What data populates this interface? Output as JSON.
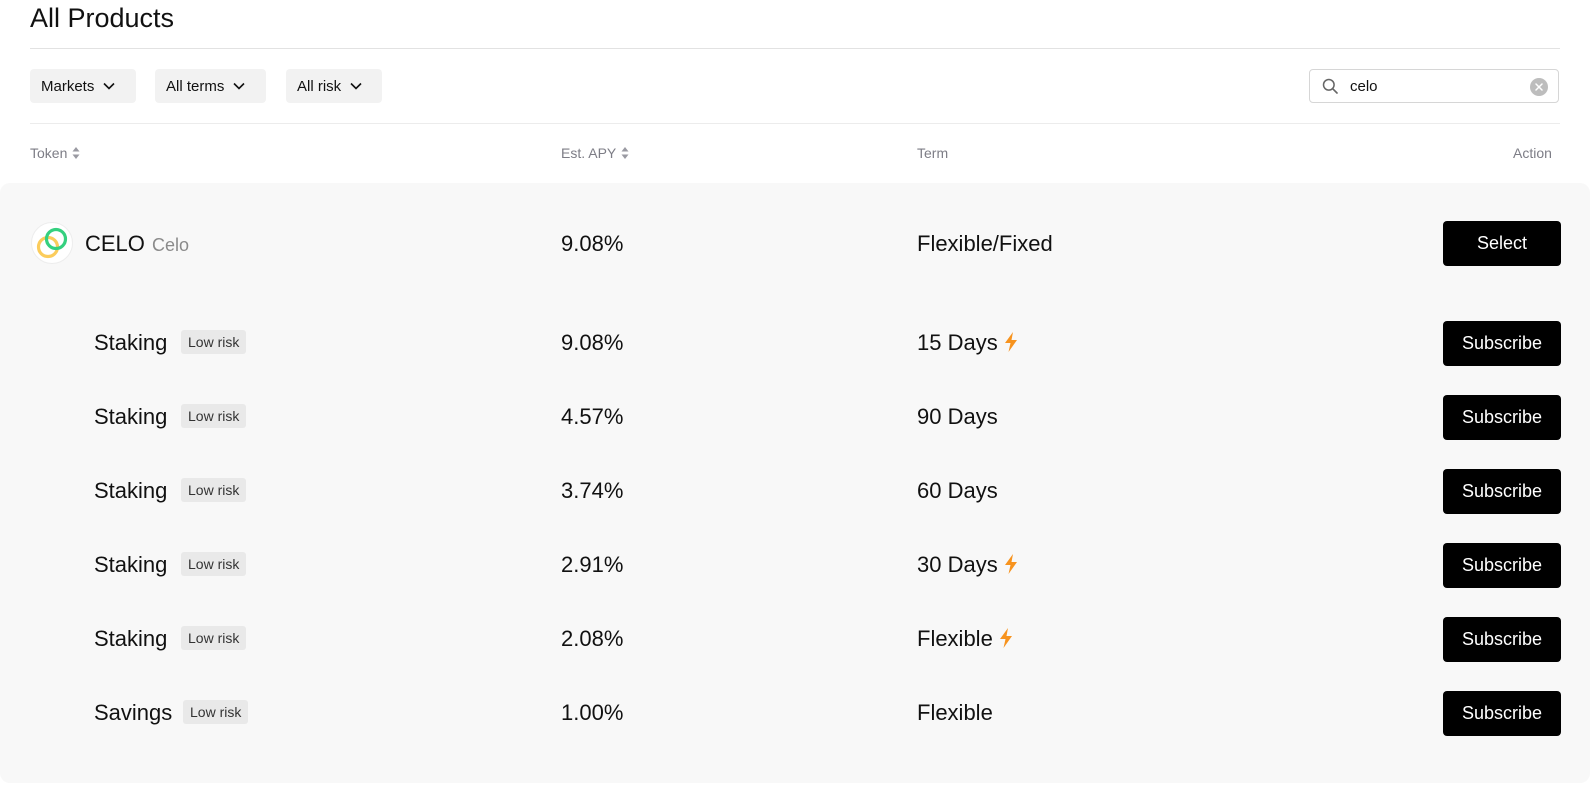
{
  "page": {
    "title": "All Products"
  },
  "filters": {
    "markets": "Markets",
    "terms": "All terms",
    "risk": "All risk"
  },
  "search": {
    "value": "celo"
  },
  "table": {
    "headers": {
      "token": "Token",
      "apy": "Est. APY",
      "term": "Term",
      "action": "Action"
    },
    "token": {
      "symbol": "CELO",
      "name": "Celo",
      "apy": "9.08%",
      "term": "Flexible/Fixed",
      "action": "Select",
      "logo_colors": [
        "#35D07F",
        "#FBCC5C"
      ]
    },
    "products": [
      {
        "name": "Staking",
        "risk": "Low risk",
        "apy": "9.08%",
        "term": "15 Days",
        "boost": true,
        "action": "Subscribe"
      },
      {
        "name": "Staking",
        "risk": "Low risk",
        "apy": "4.57%",
        "term": "90 Days",
        "boost": false,
        "action": "Subscribe"
      },
      {
        "name": "Staking",
        "risk": "Low risk",
        "apy": "3.74%",
        "term": "60 Days",
        "boost": false,
        "action": "Subscribe"
      },
      {
        "name": "Staking",
        "risk": "Low risk",
        "apy": "2.91%",
        "term": "30 Days",
        "boost": true,
        "action": "Subscribe"
      },
      {
        "name": "Staking",
        "risk": "Low risk",
        "apy": "2.08%",
        "term": "Flexible",
        "boost": true,
        "action": "Subscribe"
      },
      {
        "name": "Savings",
        "risk": "Low risk",
        "apy": "1.00%",
        "term": "Flexible",
        "boost": false,
        "action": "Subscribe"
      }
    ]
  },
  "icons": {
    "dropdown": "chevron-down-icon",
    "search": "search-icon",
    "clear": "clear-icon",
    "sort": "sort-icon",
    "boost": "lightning-bolt-icon"
  },
  "colors": {
    "accent_bolt": "#F7931E",
    "button_bg": "#000000",
    "row_bg": "#F8F8F8"
  }
}
